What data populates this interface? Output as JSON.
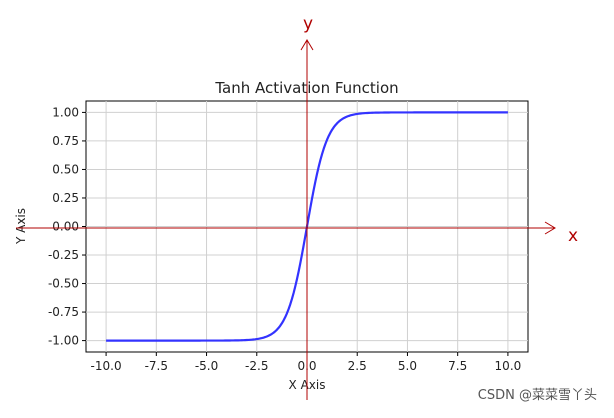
{
  "chart_data": {
    "type": "line",
    "title": "Tanh Activation Function",
    "xlabel": "X Axis",
    "ylabel": "Y Axis",
    "xlim": [
      -11,
      11
    ],
    "ylim": [
      -1.1,
      1.1
    ],
    "grid": true,
    "x_ticks": [
      "-10.0",
      "-7.5",
      "-5.0",
      "-2.5",
      "0.0",
      "2.5",
      "5.0",
      "7.5",
      "10.0"
    ],
    "y_ticks": [
      "-1.00",
      "-0.75",
      "-0.50",
      "-0.25",
      "0.00",
      "0.25",
      "0.50",
      "0.75",
      "1.00"
    ],
    "x_tick_values": [
      -10,
      -7.5,
      -5,
      -2.5,
      0,
      2.5,
      5,
      7.5,
      10
    ],
    "y_tick_values": [
      -1,
      -0.75,
      -0.5,
      -0.25,
      0,
      0.25,
      0.5,
      0.75,
      1
    ],
    "series": [
      {
        "function": "tanh",
        "color": "#3333ff",
        "x": [
          -10,
          -8,
          -6,
          -4,
          -3,
          -2.5,
          -2,
          -1.5,
          -1,
          -0.75,
          -0.5,
          -0.25,
          0,
          0.25,
          0.5,
          0.75,
          1,
          1.5,
          2,
          2.5,
          3,
          4,
          6,
          8,
          10
        ],
        "y": [
          -1.0,
          -1.0,
          -1.0,
          -0.9993,
          -0.9951,
          -0.9866,
          -0.964,
          -0.9051,
          -0.7616,
          -0.6351,
          -0.4621,
          -0.2449,
          0.0,
          0.2449,
          0.4621,
          0.6351,
          0.7616,
          0.9051,
          0.964,
          0.9866,
          0.9951,
          0.9993,
          1.0,
          1.0,
          1.0
        ]
      }
    ]
  },
  "annotations": {
    "x_arrow_label": "x",
    "y_arrow_label": "y",
    "color": "#b00000"
  },
  "watermark": "CSDN @菜菜雪丫头"
}
